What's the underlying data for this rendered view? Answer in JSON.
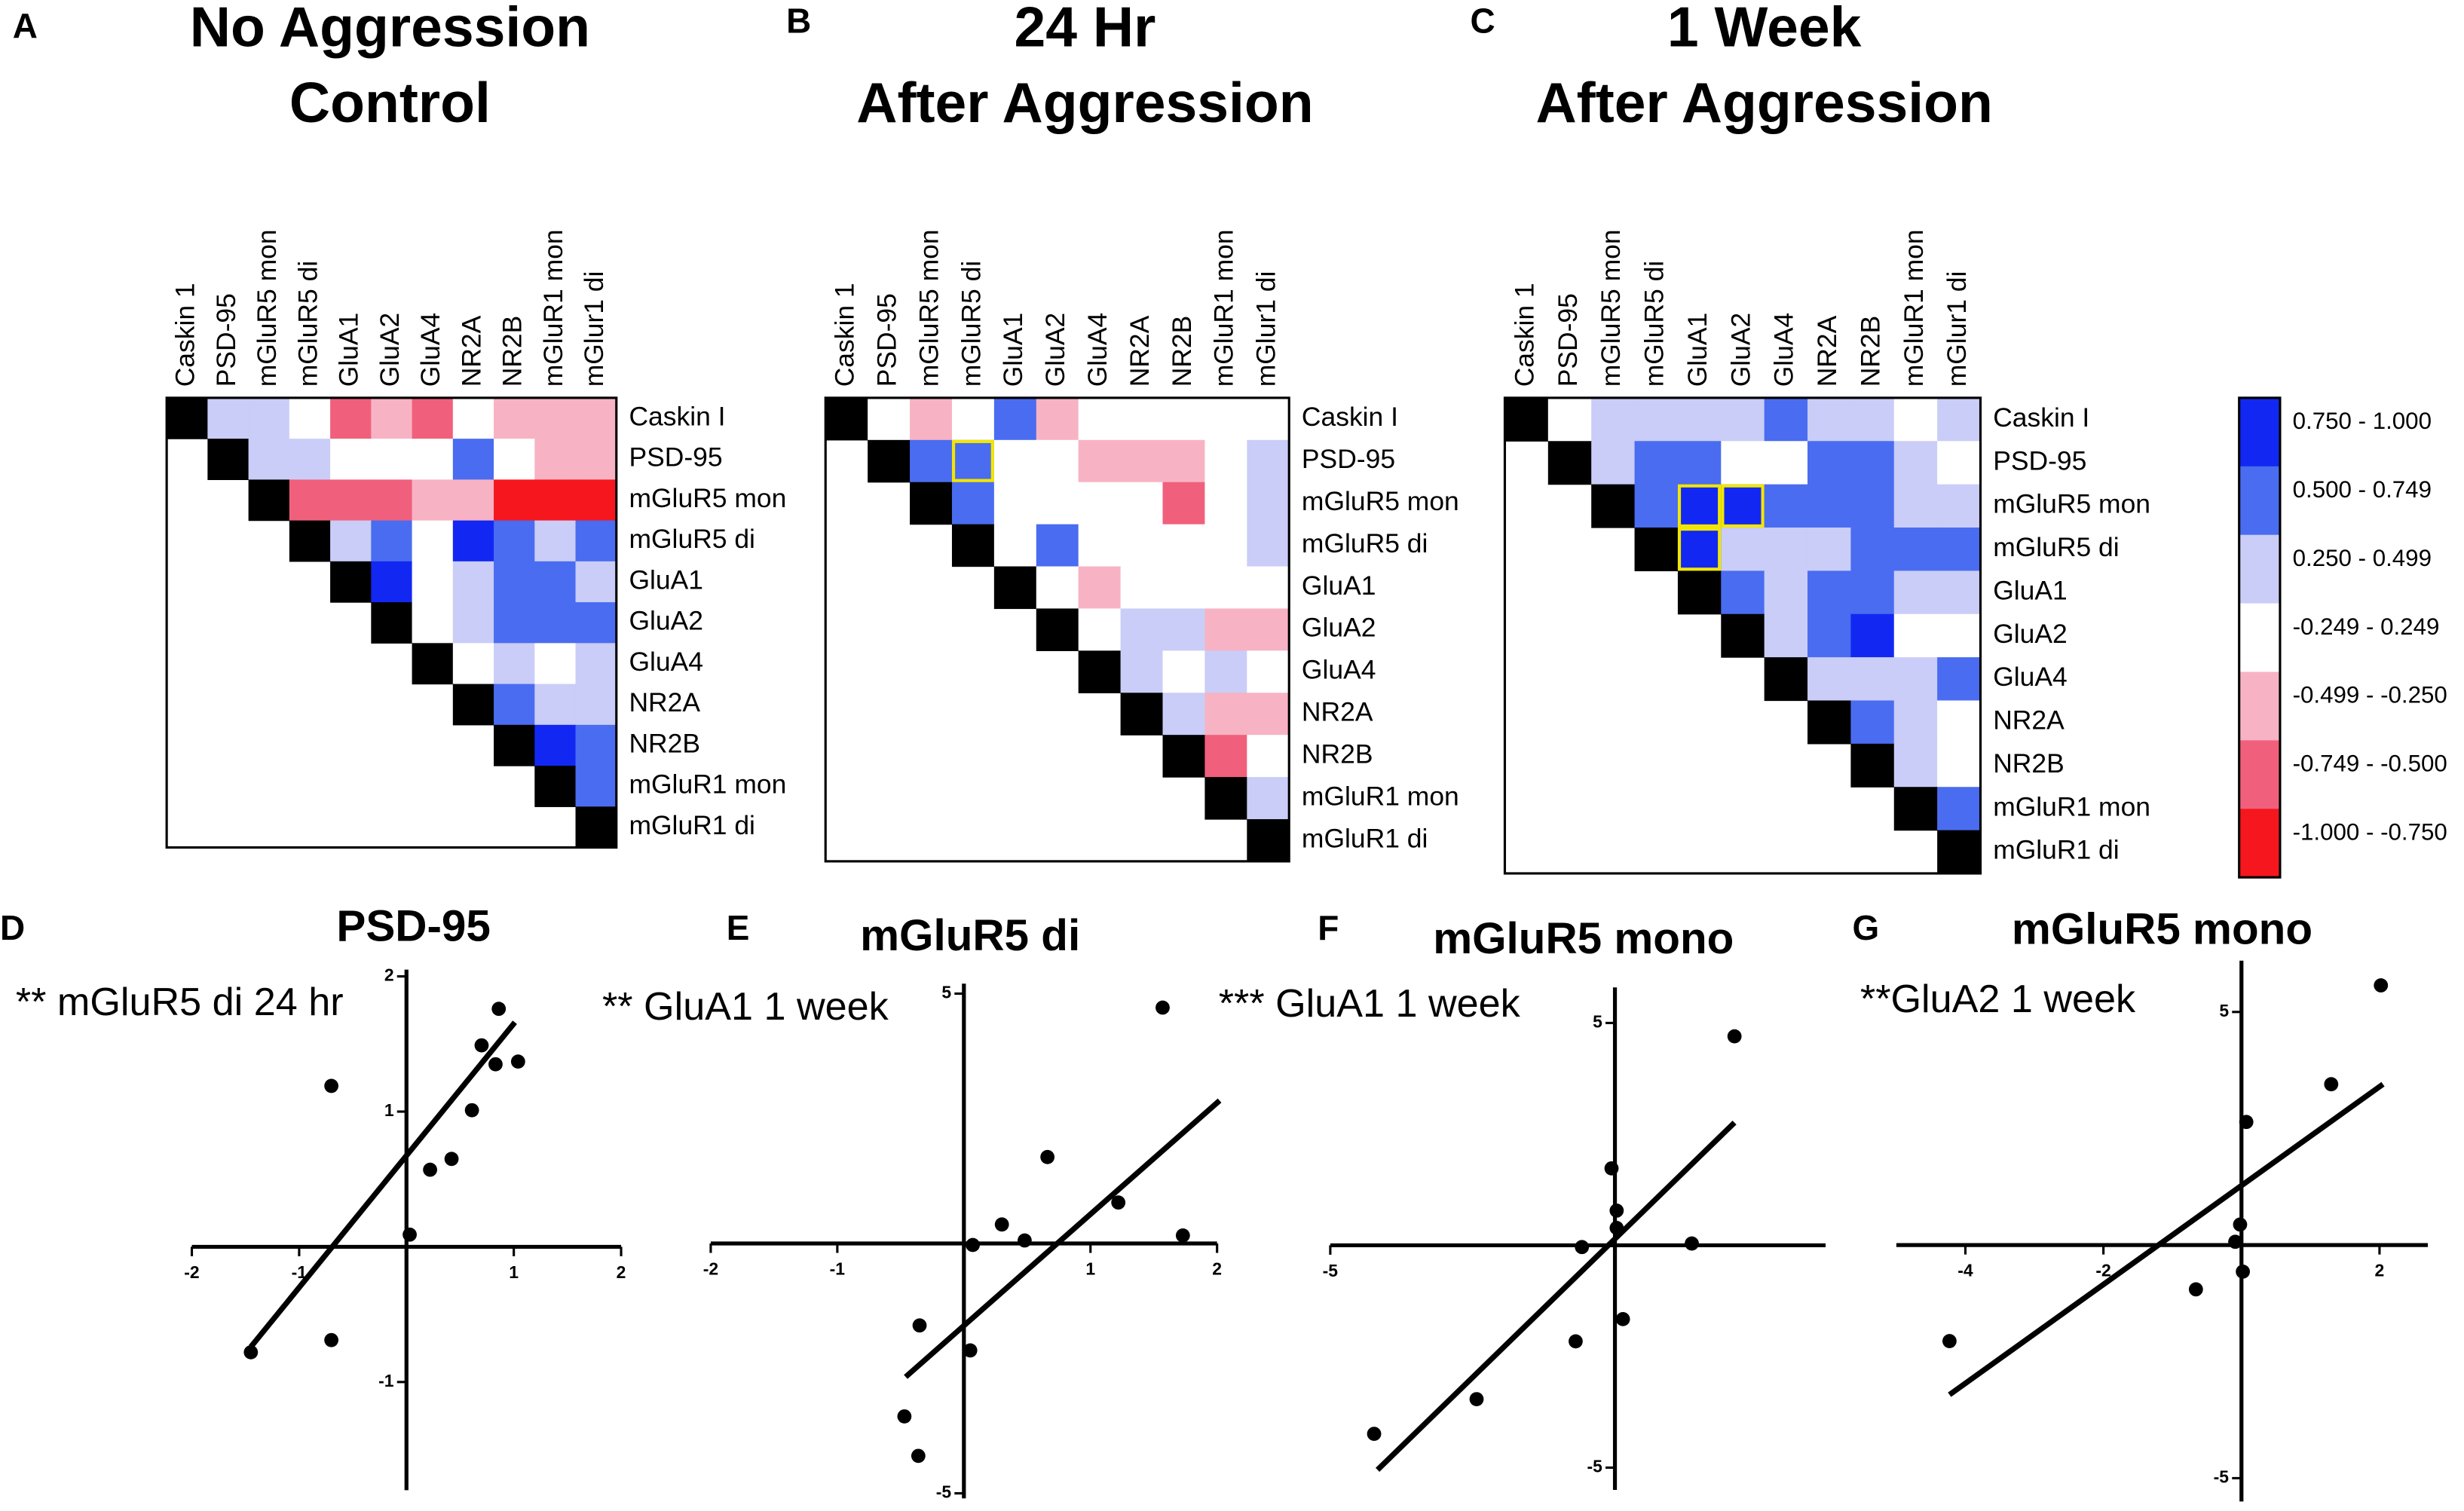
{
  "chart_data": [
    {
      "type": "heatmap",
      "label": "A",
      "title": [
        "No Aggression",
        "Control"
      ],
      "columns": [
        "Caskin 1",
        "PSD-95",
        "mGluR5 mon",
        "mGluR5 di",
        "GluA1",
        "GluA2",
        "GluA4",
        "NR2A",
        "NR2B",
        "mGluR1 mon",
        "mGlur1 di"
      ],
      "rows": [
        "Caskin I",
        "PSD-95",
        "mGluR5 mon",
        "mGluR5 di",
        "GluA1",
        "GluA2",
        "GluA4",
        "NR2A",
        "NR2B",
        "mGluR1 mon",
        "mGluR1 di"
      ],
      "diagonal_color": "#000000",
      "highlighted_cells": [],
      "values": [
        [
          null,
          0.35,
          0.35,
          0,
          -0.6,
          -0.35,
          -0.6,
          0,
          -0.35,
          -0.35,
          -0.35
        ],
        [
          null,
          null,
          0.35,
          0.35,
          0,
          0,
          0,
          0.6,
          0,
          -0.35,
          -0.35
        ],
        [
          null,
          null,
          null,
          -0.6,
          -0.6,
          -0.6,
          -0.35,
          -0.35,
          -0.9,
          -0.9,
          -0.9
        ],
        [
          null,
          null,
          null,
          null,
          0.35,
          0.6,
          0,
          0.9,
          0.6,
          0.35,
          0.6
        ],
        [
          null,
          null,
          null,
          null,
          null,
          0.9,
          0,
          0.35,
          0.6,
          0.6,
          0.35
        ],
        [
          null,
          null,
          null,
          null,
          null,
          null,
          0,
          0.35,
          0.6,
          0.6,
          0.6
        ],
        [
          null,
          null,
          null,
          null,
          null,
          null,
          null,
          0,
          0.35,
          0,
          0.35
        ],
        [
          null,
          null,
          null,
          null,
          null,
          null,
          null,
          null,
          0.6,
          0.35,
          0.35
        ],
        [
          null,
          null,
          null,
          null,
          null,
          null,
          null,
          null,
          null,
          0.9,
          0.6
        ],
        [
          null,
          null,
          null,
          null,
          null,
          null,
          null,
          null,
          null,
          null,
          0.6
        ],
        [
          null,
          null,
          null,
          null,
          null,
          null,
          null,
          null,
          null,
          null,
          null
        ]
      ]
    },
    {
      "type": "heatmap",
      "label": "B",
      "title": [
        "24 Hr",
        "After Aggression"
      ],
      "columns": [
        "Caskin 1",
        "PSD-95",
        "mGluR5 mon",
        "mGluR5 di",
        "GluA1",
        "GluA2",
        "GluA4",
        "NR2A",
        "NR2B",
        "mGluR1 mon",
        "mGlur1 di"
      ],
      "rows": [
        "Caskin I",
        "PSD-95",
        "mGluR5 mon",
        "mGluR5 di",
        "GluA1",
        "GluA2",
        "GluA4",
        "NR2A",
        "NR2B",
        "mGluR1 mon",
        "mGluR1 di"
      ],
      "diagonal_color": "#000000",
      "highlighted_cells": [
        [
          1,
          3
        ]
      ],
      "values": [
        [
          null,
          0,
          -0.35,
          0,
          0.6,
          -0.35,
          0,
          0,
          0,
          0,
          0
        ],
        [
          null,
          null,
          0.6,
          0.6,
          0,
          0,
          -0.35,
          -0.35,
          -0.35,
          0,
          0.35
        ],
        [
          null,
          null,
          null,
          0.6,
          0,
          0,
          0,
          0,
          -0.6,
          0,
          0.35
        ],
        [
          null,
          null,
          null,
          null,
          0,
          0.6,
          0,
          0,
          0,
          0,
          0.35
        ],
        [
          null,
          null,
          null,
          null,
          null,
          0,
          -0.35,
          0,
          0,
          0,
          0
        ],
        [
          null,
          null,
          null,
          null,
          null,
          null,
          0,
          0.35,
          0.35,
          -0.35,
          -0.35
        ],
        [
          null,
          null,
          null,
          null,
          null,
          null,
          null,
          0.35,
          0,
          0.35,
          0
        ],
        [
          null,
          null,
          null,
          null,
          null,
          null,
          null,
          null,
          0.35,
          -0.35,
          -0.35
        ],
        [
          null,
          null,
          null,
          null,
          null,
          null,
          null,
          null,
          null,
          -0.6,
          0
        ],
        [
          null,
          null,
          null,
          null,
          null,
          null,
          null,
          null,
          null,
          null,
          0.35
        ],
        [
          null,
          null,
          null,
          null,
          null,
          null,
          null,
          null,
          null,
          null,
          null
        ]
      ]
    },
    {
      "type": "heatmap",
      "label": "C",
      "title": [
        "1 Week",
        "After Aggression"
      ],
      "columns": [
        "Caskin 1",
        "PSD-95",
        "mGluR5 mon",
        "mGluR5 di",
        "GluA1",
        "GluA2",
        "GluA4",
        "NR2A",
        "NR2B",
        "mGluR1 mon",
        "mGlur1 di"
      ],
      "rows": [
        "Caskin I",
        "PSD-95",
        "mGluR5 mon",
        "mGluR5 di",
        "GluA1",
        "GluA2",
        "GluA4",
        "NR2A",
        "NR2B",
        "mGluR1 mon",
        "mGluR1 di"
      ],
      "diagonal_color": "#000000",
      "highlighted_cells": [
        [
          2,
          4
        ],
        [
          2,
          5
        ],
        [
          3,
          4
        ]
      ],
      "values": [
        [
          null,
          0,
          0.35,
          0.35,
          0.35,
          0.35,
          0.6,
          0.35,
          0.35,
          0,
          0.35
        ],
        [
          null,
          null,
          0.35,
          0.6,
          0.6,
          0,
          0,
          0.6,
          0.6,
          0.35,
          0
        ],
        [
          null,
          null,
          null,
          0.6,
          0.9,
          0.9,
          0.6,
          0.6,
          0.6,
          0.35,
          0.35
        ],
        [
          null,
          null,
          null,
          null,
          0.9,
          0.35,
          0.35,
          0.35,
          0.6,
          0.6,
          0.6
        ],
        [
          null,
          null,
          null,
          null,
          null,
          0.6,
          0.35,
          0.6,
          0.6,
          0.35,
          0.35
        ],
        [
          null,
          null,
          null,
          null,
          null,
          null,
          0.35,
          0.6,
          0.9,
          0,
          0
        ],
        [
          null,
          null,
          null,
          null,
          null,
          null,
          null,
          0.35,
          0.35,
          0.35,
          0.6
        ],
        [
          null,
          null,
          null,
          null,
          null,
          null,
          null,
          null,
          0.6,
          0.35,
          0
        ],
        [
          null,
          null,
          null,
          null,
          null,
          null,
          null,
          null,
          null,
          0.35,
          0
        ],
        [
          null,
          null,
          null,
          null,
          null,
          null,
          null,
          null,
          null,
          null,
          0.6
        ],
        [
          null,
          null,
          null,
          null,
          null,
          null,
          null,
          null,
          null,
          null,
          null
        ]
      ]
    },
    {
      "type": "color_scale",
      "bins": [
        {
          "label": "0.750 - 1.000",
          "range": [
            0.75,
            1.0
          ],
          "color": "#1228f2"
        },
        {
          "label": "0.500 - 0.749",
          "range": [
            0.5,
            0.749
          ],
          "color": "#4a6cf0"
        },
        {
          "label": "0.250 - 0.499",
          "range": [
            0.25,
            0.499
          ],
          "color": "#c9cdf7"
        },
        {
          "label": "-0.249 - 0.249",
          "range": [
            -0.249,
            0.249
          ],
          "color": "#ffffff"
        },
        {
          "label": "-0.499 - -0.250",
          "range": [
            -0.499,
            -0.25
          ],
          "color": "#f7b3c4"
        },
        {
          "label": "-0.749 - -0.500",
          "range": [
            -0.749,
            -0.5
          ],
          "color": "#f0607c"
        },
        {
          "label": "-1.000 - -0.750",
          "range": [
            -1.0,
            -0.75
          ],
          "color": "#f5161e"
        }
      ]
    },
    {
      "type": "scatter",
      "label": "D",
      "title": "PSD-95",
      "annotation": "**  mGluR5 di 24 hr",
      "x": [
        -1.45,
        -0.7,
        -0.7,
        0.03,
        0.22,
        0.42,
        0.61,
        0.7,
        0.83,
        0.86,
        1.04
      ],
      "y": [
        -0.78,
        1.19,
        -0.69,
        0.09,
        0.57,
        0.65,
        1.01,
        1.49,
        1.35,
        1.76,
        1.37
      ],
      "fit": {
        "x": [
          -1.45,
          1.01
        ],
        "y": [
          -0.74,
          1.66
        ]
      },
      "xlim": [
        -2,
        2
      ],
      "ylim": [
        -1.8,
        2.05
      ],
      "xticks": [
        -2,
        -1,
        1,
        2
      ],
      "yticks": [
        -1,
        1,
        2
      ],
      "color": "#000000"
    },
    {
      "type": "scatter",
      "label": "E",
      "title": "mGluR5 di",
      "annotation": "** GluA1 1 week",
      "x": [
        1.57,
        0.66,
        0.3,
        0.48,
        0.07,
        1.22,
        1.73,
        -0.35,
        0.05,
        -0.47,
        -0.36
      ],
      "y": [
        4.72,
        1.73,
        0.38,
        0.06,
        -0.03,
        0.82,
        0.16,
        -1.64,
        -2.14,
        -3.46,
        -4.25
      ],
      "fit": {
        "x": [
          -0.46,
          2.02
        ],
        "y": [
          -2.67,
          2.86
        ]
      },
      "xlim": [
        -2,
        2
      ],
      "ylim": [
        -5.1,
        5.2
      ],
      "xticks": [
        -2,
        -1,
        1,
        2
      ],
      "yticks": [
        -5,
        5
      ],
      "color": "#000000"
    },
    {
      "type": "scatter",
      "label": "F",
      "title": "mGluR5 mono",
      "annotation": "*** GluA1 1 week",
      "x": [
        2.1,
        1.35,
        -0.06,
        0.03,
        0.03,
        -0.58,
        0.14,
        -0.69,
        -2.43,
        -4.23
      ],
      "y": [
        4.7,
        0.04,
        1.73,
        0.78,
        0.39,
        -0.04,
        -1.66,
        -2.16,
        -3.46,
        -4.24
      ],
      "fit": {
        "x": [
          -4.17,
          2.1
        ],
        "y": [
          -5.05,
          2.76
        ]
      },
      "xlim": [
        -5,
        3.7
      ],
      "ylim": [
        -5.5,
        5.8
      ],
      "xticks": [
        -5
      ],
      "yticks": [
        -5,
        5
      ],
      "color": "#000000"
    },
    {
      "type": "scatter",
      "label": "G",
      "title": "mGluR5 mono",
      "annotation": "**GluA2 1 week",
      "x": [
        2.02,
        1.3,
        0.07,
        -0.02,
        -0.09,
        0.02,
        -0.66,
        -4.23
      ],
      "y": [
        5.57,
        3.45,
        2.64,
        0.44,
        0.07,
        -0.57,
        -0.95,
        -2.06
      ],
      "fit": {
        "x": [
          -4.23,
          2.05
        ],
        "y": [
          -3.21,
          3.45
        ]
      },
      "xlim": [
        -5,
        2.7
      ],
      "ylim": [
        -5.5,
        6.1
      ],
      "xticks": [
        -4,
        -2,
        2
      ],
      "yticks": [
        -5,
        5
      ],
      "color": "#000000"
    }
  ]
}
